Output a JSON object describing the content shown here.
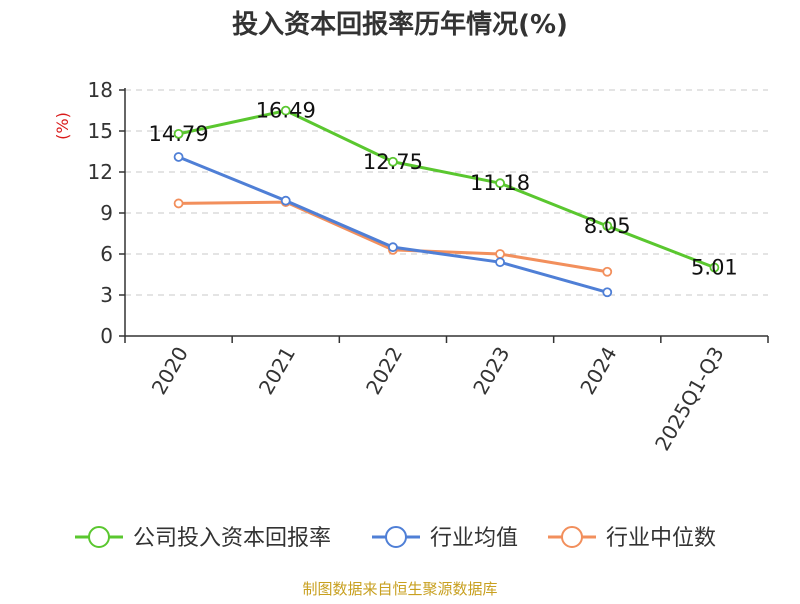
{
  "chart_data": {
    "type": "line",
    "title": "投入资本回报率历年情况(%)",
    "ylabel": "(%)",
    "xlabel": "",
    "categories": [
      "2020",
      "2021",
      "2022",
      "2023",
      "2024",
      "2025Q1-Q3"
    ],
    "ylim": [
      0,
      18
    ],
    "yticks": [
      0,
      3,
      6,
      9,
      12,
      15,
      18
    ],
    "grid": true,
    "legend_position": "bottom",
    "series": [
      {
        "name": "公司投入资本回报率",
        "color": "#5ac72f",
        "values": [
          14.79,
          16.49,
          12.75,
          11.18,
          8.05,
          5.01
        ],
        "labels": [
          "14.79",
          "16.49",
          "12.75",
          "11.18",
          "8.05",
          "5.01"
        ]
      },
      {
        "name": "行业均值",
        "color": "#4f7fd6",
        "values": [
          13.1,
          9.9,
          6.5,
          5.4,
          3.2,
          null
        ]
      },
      {
        "name": "行业中位数",
        "color": "#f28f5c",
        "values": [
          9.7,
          9.8,
          6.3,
          6.0,
          4.7,
          null
        ]
      }
    ],
    "source": "制图数据来自恒生聚源数据库"
  }
}
